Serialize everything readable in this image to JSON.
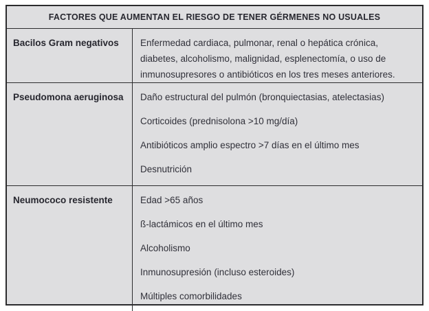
{
  "colors": {
    "table_background": "#dedee0",
    "border": "#2b2b2d",
    "text": "#303039",
    "page_background": "#ffffff"
  },
  "table": {
    "title": "FACTORES QUE AUMENTAN EL RIESGO DE TENER GÉRMENES NO USUALES",
    "rows": [
      {
        "label": "Bacilos Gram negativos",
        "items": [
          "Enfermedad cardiaca, pulmonar, renal o hepática crónica, diabetes, alcoholismo, malignidad, esplenectomía, o uso de inmunosupresores o antibióticos en los tres meses anteriores."
        ]
      },
      {
        "label": "Pseudomona aeruginosa",
        "items": [
          "Daño estructural del pulmón (bronquiectasias, atelectasias)",
          "Corticoides (prednisolona >10 mg/día)",
          "Antibióticos amplio espectro >7 días en el último mes",
          "Desnutrición"
        ]
      },
      {
        "label": "Neumococo resistente",
        "items": [
          "Edad >65 años",
          "ß-lactámicos en el último mes",
          "Alcoholismo",
          "Inmunosupresión (incluso esteroides)",
          "Múltiples comorbilidades"
        ]
      }
    ]
  }
}
